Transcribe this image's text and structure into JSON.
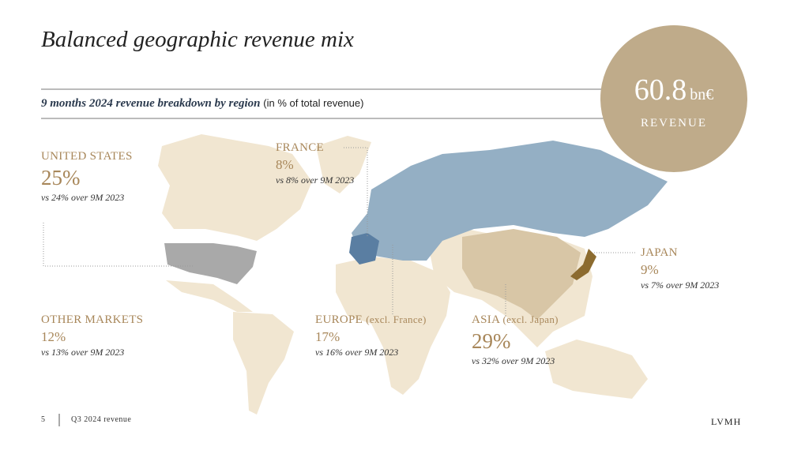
{
  "header": {
    "title": "Balanced geographic revenue mix",
    "subtitle": "9 months 2024 revenue breakdown by region",
    "subtitle_note": "(in % of total revenue)"
  },
  "badge": {
    "value": "60.8",
    "unit": "bn€",
    "label": "REVENUE"
  },
  "regions": [
    {
      "name": "UNITED STATES",
      "share": "25%",
      "comparison": "vs 24% over 9M 2023"
    },
    {
      "name": "FRANCE",
      "share": "8%",
      "comparison": "vs 8% over 9M 2023"
    },
    {
      "name": "JAPAN",
      "share": "9%",
      "comparison": "vs 7% over 9M 2023"
    },
    {
      "name": "OTHER MARKETS",
      "share": "12%",
      "comparison": "vs 13% over 9M 2023"
    },
    {
      "name": "EUROPE",
      "qualifier": "(excl. France)",
      "share": "17%",
      "comparison": "vs 16% over 9M 2023"
    },
    {
      "name": "ASIA",
      "qualifier": "(excl. Japan)",
      "share": "29%",
      "comparison": "vs 32% over 9M 2023"
    }
  ],
  "footer": {
    "page": "5",
    "doc": "Q3 2024 revenue",
    "brand": "LVMH"
  }
}
